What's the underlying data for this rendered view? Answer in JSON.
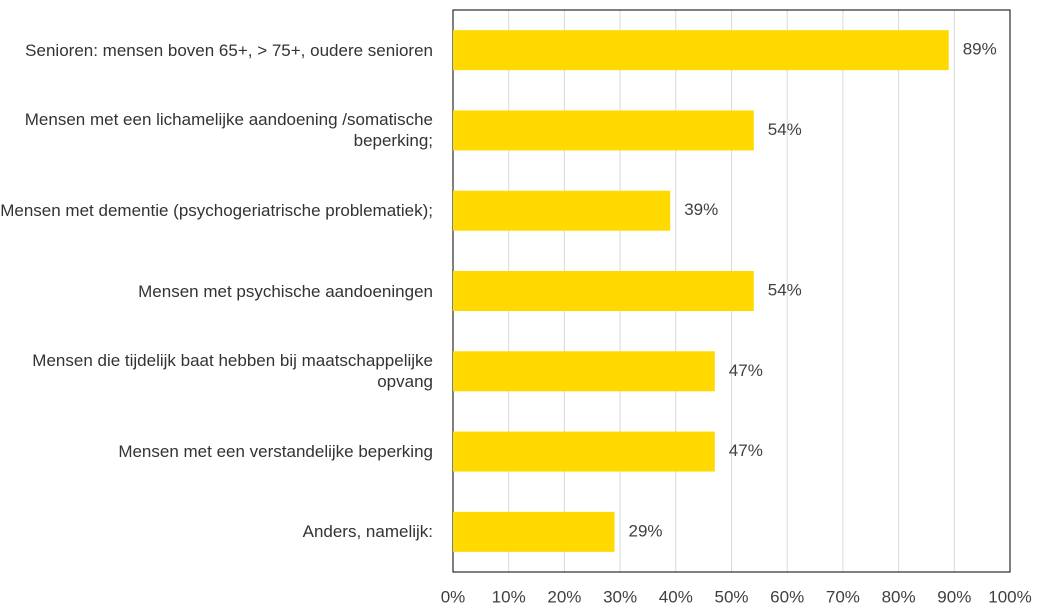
{
  "chart_data": {
    "type": "hbar",
    "categories": [
      "Senioren: mensen boven 65+, > 75+, oudere senioren",
      "Mensen met een lichamelijke aandoening /somatische beperking;",
      "Mensen met dementie (psychogeriatrische problematiek);",
      "Mensen met psychische aandoeningen",
      "Mensen die tijdelijk baat hebben bij maatschappelijke opvang",
      "Mensen met een verstandelijke beperking",
      "Anders, namelijk:"
    ],
    "values": [
      89,
      54,
      39,
      54,
      47,
      47,
      29
    ],
    "value_labels": [
      "89%",
      "54%",
      "39%",
      "54%",
      "47%",
      "47%",
      "29%"
    ],
    "color": "#ffd900",
    "xlim": [
      0,
      100
    ],
    "xticks": [
      {
        "value": 0,
        "label": "0%"
      },
      {
        "value": 10,
        "label": "10%"
      },
      {
        "value": 20,
        "label": "20%"
      },
      {
        "value": 30,
        "label": "30%"
      },
      {
        "value": 40,
        "label": "40%"
      },
      {
        "value": 50,
        "label": "50%"
      },
      {
        "value": 60,
        "label": "60%"
      },
      {
        "value": 70,
        "label": "70%"
      },
      {
        "value": 80,
        "label": "80%"
      },
      {
        "value": 90,
        "label": "90%"
      },
      {
        "value": 100,
        "label": "100%"
      }
    ],
    "grid": true
  }
}
